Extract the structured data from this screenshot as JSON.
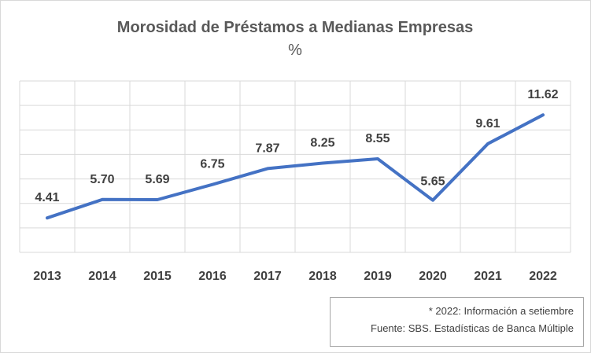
{
  "chart_data": {
    "type": "line",
    "title": "Morosidad de Préstamos a Medianas Empresas",
    "subtitle": "%",
    "categories": [
      "2013",
      "2014",
      "2015",
      "2016",
      "2017",
      "2018",
      "2019",
      "2020",
      "2021",
      "2022"
    ],
    "series": [
      {
        "values": [
          4.41,
          5.7,
          5.69,
          6.75,
          7.87,
          8.25,
          8.55,
          5.65,
          9.61,
          11.62
        ]
      }
    ],
    "data_labels": [
      "4.41",
      "5.70",
      "5.69",
      "6.75",
      "7.87",
      "8.25",
      "8.55",
      "5.65",
      "9.61",
      "11.62"
    ],
    "ylim": [
      2,
      14
    ],
    "grid": true,
    "legend": "none",
    "line_color": "#4472c4"
  },
  "notes": {
    "line1": "* 2022: Información a setiembre",
    "line2": "Fuente: SBS. Estadísticas de Banca Múltiple"
  }
}
